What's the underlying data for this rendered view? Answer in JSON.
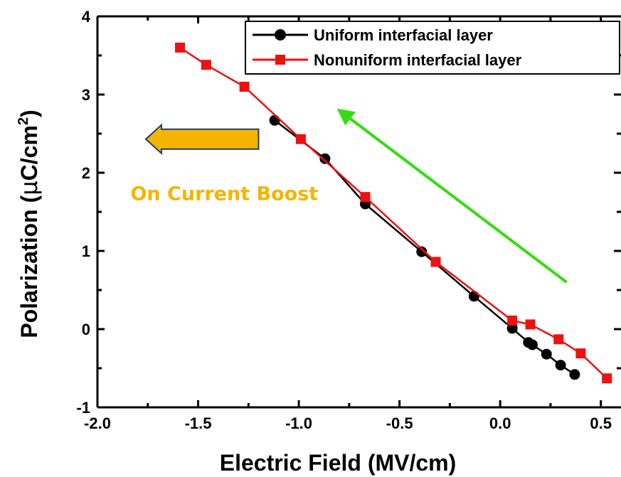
{
  "chart_data": {
    "type": "line",
    "title": "",
    "xlabel": "Electric Field (MV/cm)",
    "ylabel_main": "Polarization (",
    "ylabel_mu": "μ",
    "ylabel_unit": "C/cm",
    "ylabel_sup": "2",
    "ylabel_close": ")",
    "xlim": [
      -2.0,
      0.6
    ],
    "ylim": [
      -1,
      4
    ],
    "x_ticks": [
      "-2.0",
      "-1.5",
      "-1.0",
      "-0.5",
      "0.0",
      "0.5"
    ],
    "y_ticks": [
      "-1",
      "0",
      "1",
      "2",
      "3",
      "4"
    ],
    "grid": false,
    "legend_position": "top-right",
    "series": [
      {
        "name": "Uniform interfacial layer",
        "color": "#000000",
        "marker": "circle",
        "x": [
          -1.12,
          -0.87,
          -0.67,
          -0.39,
          -0.13,
          0.06,
          0.14,
          0.16,
          0.23,
          0.3,
          0.37
        ],
        "y": [
          2.67,
          2.18,
          1.6,
          0.99,
          0.42,
          0.01,
          -0.17,
          -0.2,
          -0.32,
          -0.46,
          -0.58
        ]
      },
      {
        "name": "Nonuniform interfacial layer",
        "color": "#ee1111",
        "marker": "square",
        "x": [
          -1.59,
          -1.46,
          -1.27,
          -0.99,
          -0.67,
          -0.32,
          0.06,
          0.15,
          0.29,
          0.4,
          0.53
        ],
        "y": [
          3.6,
          3.38,
          3.1,
          2.43,
          1.69,
          0.86,
          0.11,
          0.06,
          -0.13,
          -0.31,
          -0.63
        ]
      }
    ],
    "annotations": [
      {
        "type": "block-arrow",
        "color": "#f5b400",
        "from": [
          -1.2,
          2.43
        ],
        "to": [
          -1.76,
          2.43
        ]
      },
      {
        "type": "text",
        "text": "On Current Boost",
        "color": "#f5b400",
        "x": -1.37,
        "y": 1.65
      },
      {
        "type": "arrow",
        "color": "#33dd11",
        "from": [
          0.33,
          0.6
        ],
        "to": [
          -0.8,
          2.8
        ]
      }
    ]
  }
}
